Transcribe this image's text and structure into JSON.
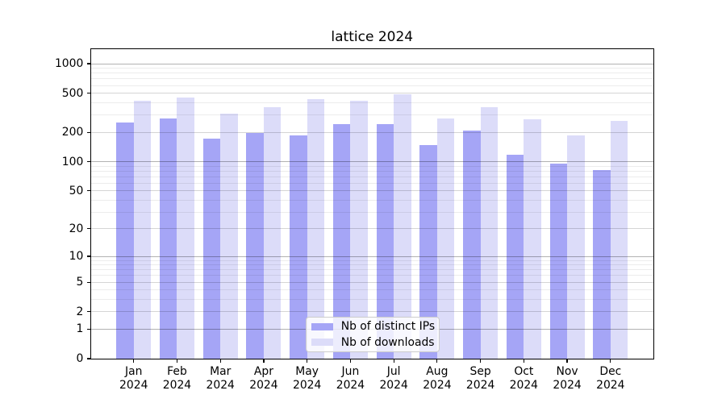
{
  "chart_data": {
    "type": "bar",
    "title": "lattice 2024",
    "categories": [
      "Jan",
      "Feb",
      "Mar",
      "Apr",
      "May",
      "Jun",
      "Jul",
      "Aug",
      "Sep",
      "Oct",
      "Nov",
      "Dec"
    ],
    "category_year": "2024",
    "series": [
      {
        "name": "Nb of distinct IPs",
        "color": "#a5a5f6",
        "values": [
          251,
          275,
          172,
          195,
          186,
          243,
          244,
          147,
          210,
          118,
          96,
          82
        ]
      },
      {
        "name": "Nb of downloads",
        "color": "#dcdcf9",
        "values": [
          420,
          452,
          312,
          364,
          439,
          418,
          488,
          276,
          361,
          272,
          186,
          263
        ]
      }
    ],
    "y_scale": "log10(value+1)",
    "y_major_ticks": [
      0,
      1,
      2,
      5,
      10,
      20,
      50,
      100,
      200,
      500,
      1000
    ],
    "y_minor_ticks": [
      3,
      4,
      6,
      7,
      8,
      9,
      30,
      40,
      60,
      70,
      80,
      90,
      300,
      400,
      600,
      700,
      800,
      900
    ],
    "grid_lines": {
      "decade": [
        1,
        10,
        100,
        1000
      ],
      "half_decade": [
        2,
        5,
        20,
        50,
        200,
        500
      ],
      "minor": [
        3,
        4,
        6,
        7,
        8,
        9,
        30,
        40,
        60,
        70,
        80,
        90,
        300,
        400,
        600,
        700,
        800,
        900
      ]
    },
    "ylim": [
      0,
      1413
    ],
    "grid": "both",
    "legend_position": "lower center"
  }
}
